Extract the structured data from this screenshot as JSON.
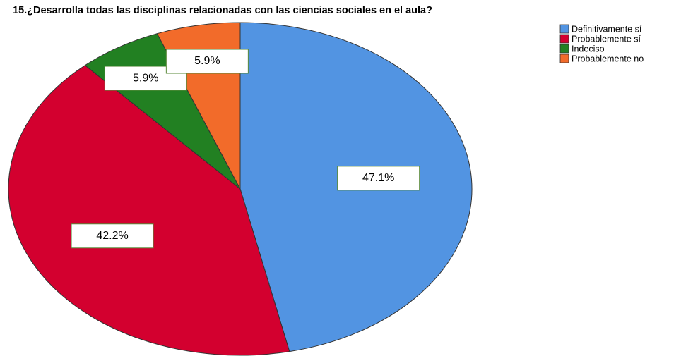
{
  "chart_data": {
    "type": "pie",
    "title": "15.¿Desarrolla todas las disciplinas relacionadas con las ciencias sociales en el aula?",
    "categories": [
      "Definitivamente sí",
      "Probablemente sí",
      "Indeciso",
      "Probablemente no"
    ],
    "values": [
      47.1,
      42.2,
      5.9,
      5.9
    ],
    "value_labels": [
      "47.1%",
      "42.2%",
      "5.9%",
      "5.9%"
    ],
    "colors": [
      "#5294e2",
      "#d3002f",
      "#228022",
      "#f26b2a"
    ],
    "legend": "top-right"
  }
}
